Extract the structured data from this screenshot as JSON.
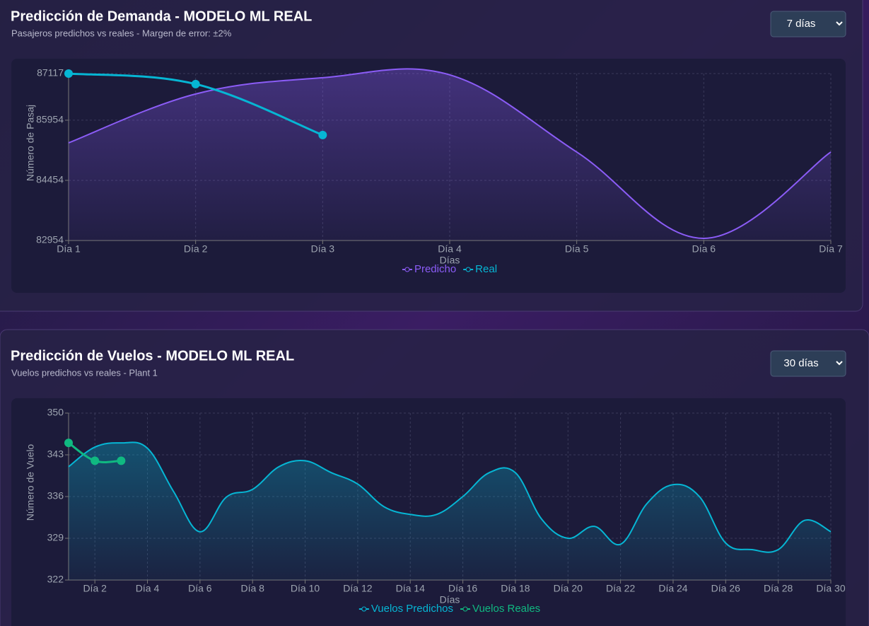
{
  "chart_data": [
    {
      "type": "line",
      "title": "Predicción de Demanda - MODELO ML REAL",
      "subtitle": "Pasajeros predichos vs reales - Margen de error: ±2%",
      "selector": "7 días",
      "x_label": "Días",
      "y_label": "Número de Pasaj",
      "categories": [
        "Día 1",
        "Día 2",
        "Día 3",
        "Día 4",
        "Día 5",
        "Día 6",
        "Día 7"
      ],
      "series": [
        {
          "name": "Predicho",
          "color": "#8b5cf6",
          "values": [
            85389,
            86608,
            87013,
            87085,
            85160,
            83007,
            85160
          ]
        },
        {
          "name": "Real",
          "color": "#06b6d4",
          "values": [
            87117,
            86855,
            85584,
            null,
            null,
            null,
            null
          ]
        }
      ],
      "ylim": [
        82954,
        87117
      ],
      "yticks": [
        82954,
        84454,
        85954,
        87117
      ],
      "grid": true,
      "legend": "bottom"
    },
    {
      "type": "line",
      "title": "Predicción de Vuelos - MODELO ML REAL",
      "subtitle": "Vuelos predichos vs reales - Plant 1",
      "selector": "30 días",
      "x_label": "Días",
      "y_label": "Número de Vuelo",
      "categories": [
        null,
        "Día 2",
        null,
        "Día 4",
        null,
        "Día 6",
        null,
        "Día 8",
        null,
        "Día 10",
        null,
        "Día 12",
        null,
        "Día 14",
        null,
        "Día 16",
        null,
        "Día 18",
        null,
        "Día 20",
        null,
        "Día 22",
        null,
        "Día 24",
        null,
        "Día 26",
        null,
        "Día 28",
        null,
        "Día 30"
      ],
      "series": [
        {
          "name": "Vuelos Predichos",
          "color": "#06b6d4",
          "values": [
            341,
            344.3,
            345,
            344.1,
            336.8,
            330.1,
            335.9,
            337.2,
            341,
            342,
            340,
            338.1,
            334.3,
            333,
            333,
            336,
            340,
            340,
            332.2,
            329,
            331,
            328,
            334.8,
            338,
            336,
            328.2,
            327.1,
            327.1,
            332,
            330.1
          ]
        },
        {
          "name": "Vuelos Reales",
          "color": "#10b981",
          "values": [
            345,
            342,
            342,
            null,
            null,
            null,
            null,
            null,
            null,
            null,
            null,
            null,
            null,
            null,
            null,
            null,
            null,
            null,
            null,
            null,
            null,
            null,
            null,
            null,
            null,
            null,
            null,
            null,
            null,
            null
          ]
        }
      ],
      "ylim": [
        322,
        350
      ],
      "yticks": [
        322,
        329,
        336,
        343,
        350
      ],
      "grid": true,
      "legend": "bottom"
    }
  ]
}
